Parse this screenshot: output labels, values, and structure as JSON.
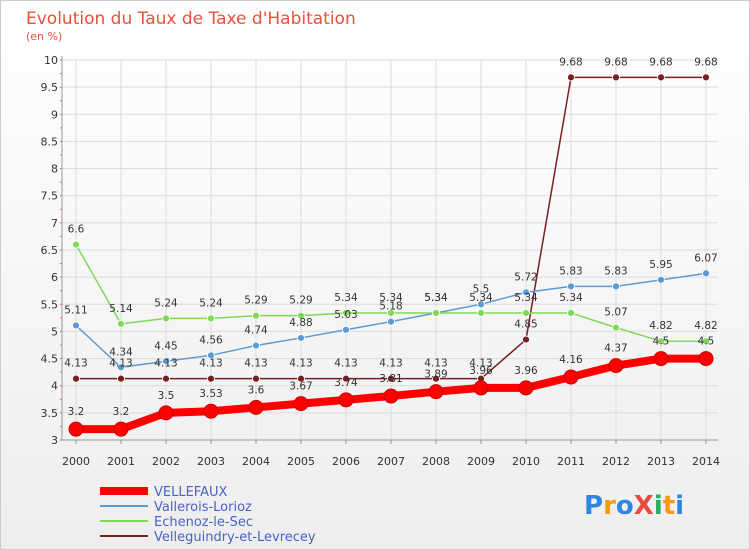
{
  "chart_data": {
    "type": "line",
    "title": "Evolution du Taux de Taxe d'Habitation",
    "subtitle": "(en %)",
    "xlabel": "",
    "ylabel": "",
    "x": [
      "2000",
      "2001",
      "2002",
      "2003",
      "2004",
      "2005",
      "2006",
      "2007",
      "2008",
      "2009",
      "2010",
      "2011",
      "2012",
      "2013",
      "2014"
    ],
    "ylim": [
      3,
      10
    ],
    "yticks": [
      "3",
      "3.5",
      "4",
      "4.5",
      "5",
      "5.5",
      "6",
      "6.5",
      "7",
      "7.5",
      "8",
      "8.5",
      "9",
      "9.5",
      "10"
    ],
    "grid": "horizontal",
    "legend_position": "bottom-left",
    "series": [
      {
        "name": "VELLEFAUX",
        "color": "#ff0000",
        "values": [
          3.2,
          3.2,
          3.5,
          3.53,
          3.6,
          3.67,
          3.74,
          3.81,
          3.89,
          3.96,
          3.96,
          4.16,
          4.37,
          4.5,
          4.5
        ],
        "labels": [
          "3.2",
          "3.2",
          "3.5",
          "3.53",
          "3.6",
          "3.67",
          "3.74",
          "3.81",
          "3.89",
          "3.96",
          "3.96",
          "4.16",
          "4.37",
          "4.5",
          "4.5"
        ]
      },
      {
        "name": "Vallerois-Lorioz",
        "color": "#5b9bd5",
        "values": [
          5.11,
          4.34,
          4.45,
          4.56,
          4.74,
          4.88,
          5.03,
          5.18,
          5.34,
          5.5,
          5.72,
          5.83,
          5.83,
          5.95,
          6.07
        ],
        "labels": [
          "5.11",
          "4.34",
          "4.45",
          "4.56",
          "4.74",
          "4.88",
          "5.03",
          "5.18",
          "5.34",
          "5.5",
          "5.72",
          "5.83",
          "5.83",
          "5.95",
          "6.07"
        ]
      },
      {
        "name": "Echenoz-le-Sec",
        "color": "#7ed957",
        "values": [
          6.6,
          5.14,
          5.24,
          5.24,
          5.29,
          5.29,
          5.34,
          5.34,
          5.34,
          5.34,
          5.34,
          5.34,
          5.07,
          4.82,
          4.82
        ],
        "labels": [
          "6.6",
          "5.14",
          "5.24",
          "5.24",
          "5.29",
          "5.29",
          "5.34",
          "5.34",
          "5.34",
          "5.34",
          "5.34",
          "5.34",
          "5.07",
          "4.82",
          "4.82"
        ]
      },
      {
        "name": "Velleguindry-et-Levrecey",
        "color": "#7a1f1f",
        "values": [
          4.13,
          4.13,
          4.13,
          4.13,
          4.13,
          4.13,
          4.13,
          4.13,
          4.13,
          4.13,
          4.85,
          9.68,
          9.68,
          9.68,
          9.68
        ],
        "labels": [
          "4.13",
          "4.13",
          "4.13",
          "4.13",
          "4.13",
          "4.13",
          "4.13",
          "4.13",
          "4.13",
          "4.13",
          "4.85",
          "9.68",
          "9.68",
          "9.68",
          "9.68"
        ]
      }
    ]
  },
  "logo": {
    "text": "ProXiti"
  }
}
